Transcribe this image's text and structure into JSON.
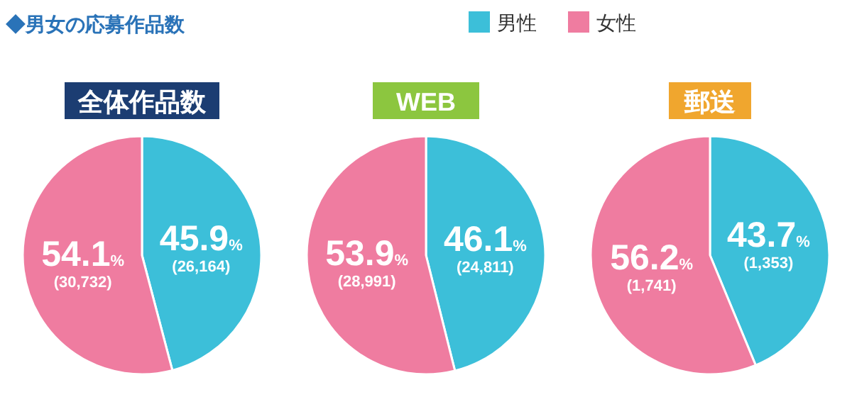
{
  "chart_data": [
    {
      "type": "pie",
      "title": "全体作品数",
      "annotations": [
        "◆男女の応募作品数"
      ],
      "legend": "top",
      "categories": [
        "男性",
        "女性"
      ],
      "values": [
        45.9,
        54.1
      ],
      "colors": [
        "#3cbfd9",
        "#ef7ca0"
      ],
      "value_labels": [
        "45.9%\n(26,164)",
        "54.1%\n(30,732)"
      ]
    },
    {
      "type": "pie",
      "title": "WEB",
      "categories": [
        null,
        null
      ],
      "values": [
        46.1,
        53.9
      ],
      "colors": [
        "#3cbfd9",
        "#ef7ca0"
      ],
      "value_labels": [
        "46.1%\n(24,811)",
        "53.9%\n(28,991)"
      ]
    },
    {
      "type": "pie",
      "title": "郵送",
      "categories": [
        null,
        null
      ],
      "values": [
        43.7,
        56.2
      ],
      "colors": [
        "#3cbfd9",
        "#ef7ca0"
      ],
      "value_labels": [
        "43.7%\n(1,353)",
        "56.2%\n(1,741)"
      ]
    }
  ]
}
